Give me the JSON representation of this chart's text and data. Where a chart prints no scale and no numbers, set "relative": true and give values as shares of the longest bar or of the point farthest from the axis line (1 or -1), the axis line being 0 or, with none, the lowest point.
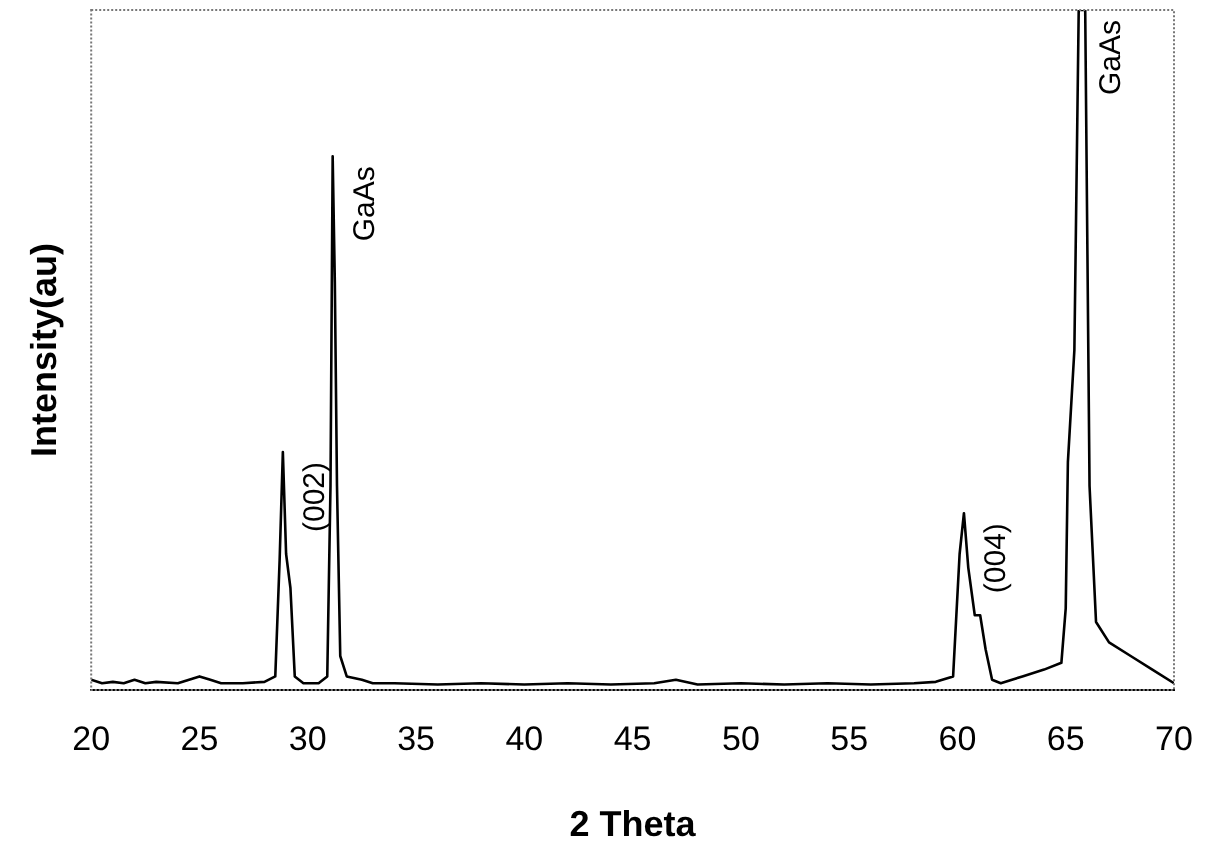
{
  "chart_data": {
    "type": "line",
    "xlabel": "2 Theta",
    "ylabel": "Intensity(au)",
    "relative": true,
    "grid": false,
    "legend": false,
    "marker": "none",
    "line_style": "solid",
    "xlim": [
      20,
      70
    ],
    "xticks": [
      20,
      25,
      30,
      35,
      40,
      45,
      50,
      55,
      60,
      65,
      70
    ],
    "series": [
      {
        "color": "#000000",
        "x": [
          20,
          20.5,
          21,
          21.5,
          22,
          22.5,
          23,
          24,
          25,
          25.5,
          26,
          27,
          28,
          28.5,
          28.7,
          28.85,
          29.0,
          29.2,
          29.4,
          29.8,
          30.5,
          30.9,
          31.05,
          31.15,
          31.25,
          31.35,
          31.5,
          31.8,
          32.5,
          33,
          34,
          36,
          38,
          40,
          42,
          44,
          46,
          47,
          48,
          50,
          52,
          54,
          56,
          58,
          59,
          59.8,
          60.1,
          60.3,
          60.5,
          60.8,
          61.05,
          61.3,
          61.6,
          62,
          63,
          64,
          64.8,
          65.0,
          65.1,
          65.4,
          65.6,
          65.9,
          66.1,
          66.4,
          67,
          68,
          69,
          70
        ],
        "values": [
          0.015,
          0.01,
          0.012,
          0.01,
          0.015,
          0.01,
          0.012,
          0.01,
          0.02,
          0.015,
          0.01,
          0.01,
          0.012,
          0.02,
          0.19,
          0.35,
          0.2,
          0.15,
          0.02,
          0.01,
          0.01,
          0.02,
          0.3,
          0.785,
          0.6,
          0.3,
          0.05,
          0.02,
          0.015,
          0.01,
          0.01,
          0.008,
          0.01,
          0.008,
          0.01,
          0.008,
          0.01,
          0.015,
          0.008,
          0.01,
          0.008,
          0.01,
          0.008,
          0.01,
          0.012,
          0.02,
          0.2,
          0.26,
          0.18,
          0.11,
          0.11,
          0.06,
          0.015,
          0.01,
          0.02,
          0.03,
          0.04,
          0.12,
          0.335,
          0.5,
          1,
          1,
          0.3,
          0.1,
          0.07,
          0.05,
          0.03,
          0.01
        ]
      }
    ],
    "annotations": [
      {
        "text": "(002)",
        "x": 28.85,
        "y": 0.35
      },
      {
        "text": "GaAs",
        "x": 31.15,
        "y": 0.785
      },
      {
        "text": "(004)",
        "x": 60.3,
        "y": 0.26
      },
      {
        "text": "GaAs",
        "x": 65.6,
        "y": 1
      }
    ]
  }
}
